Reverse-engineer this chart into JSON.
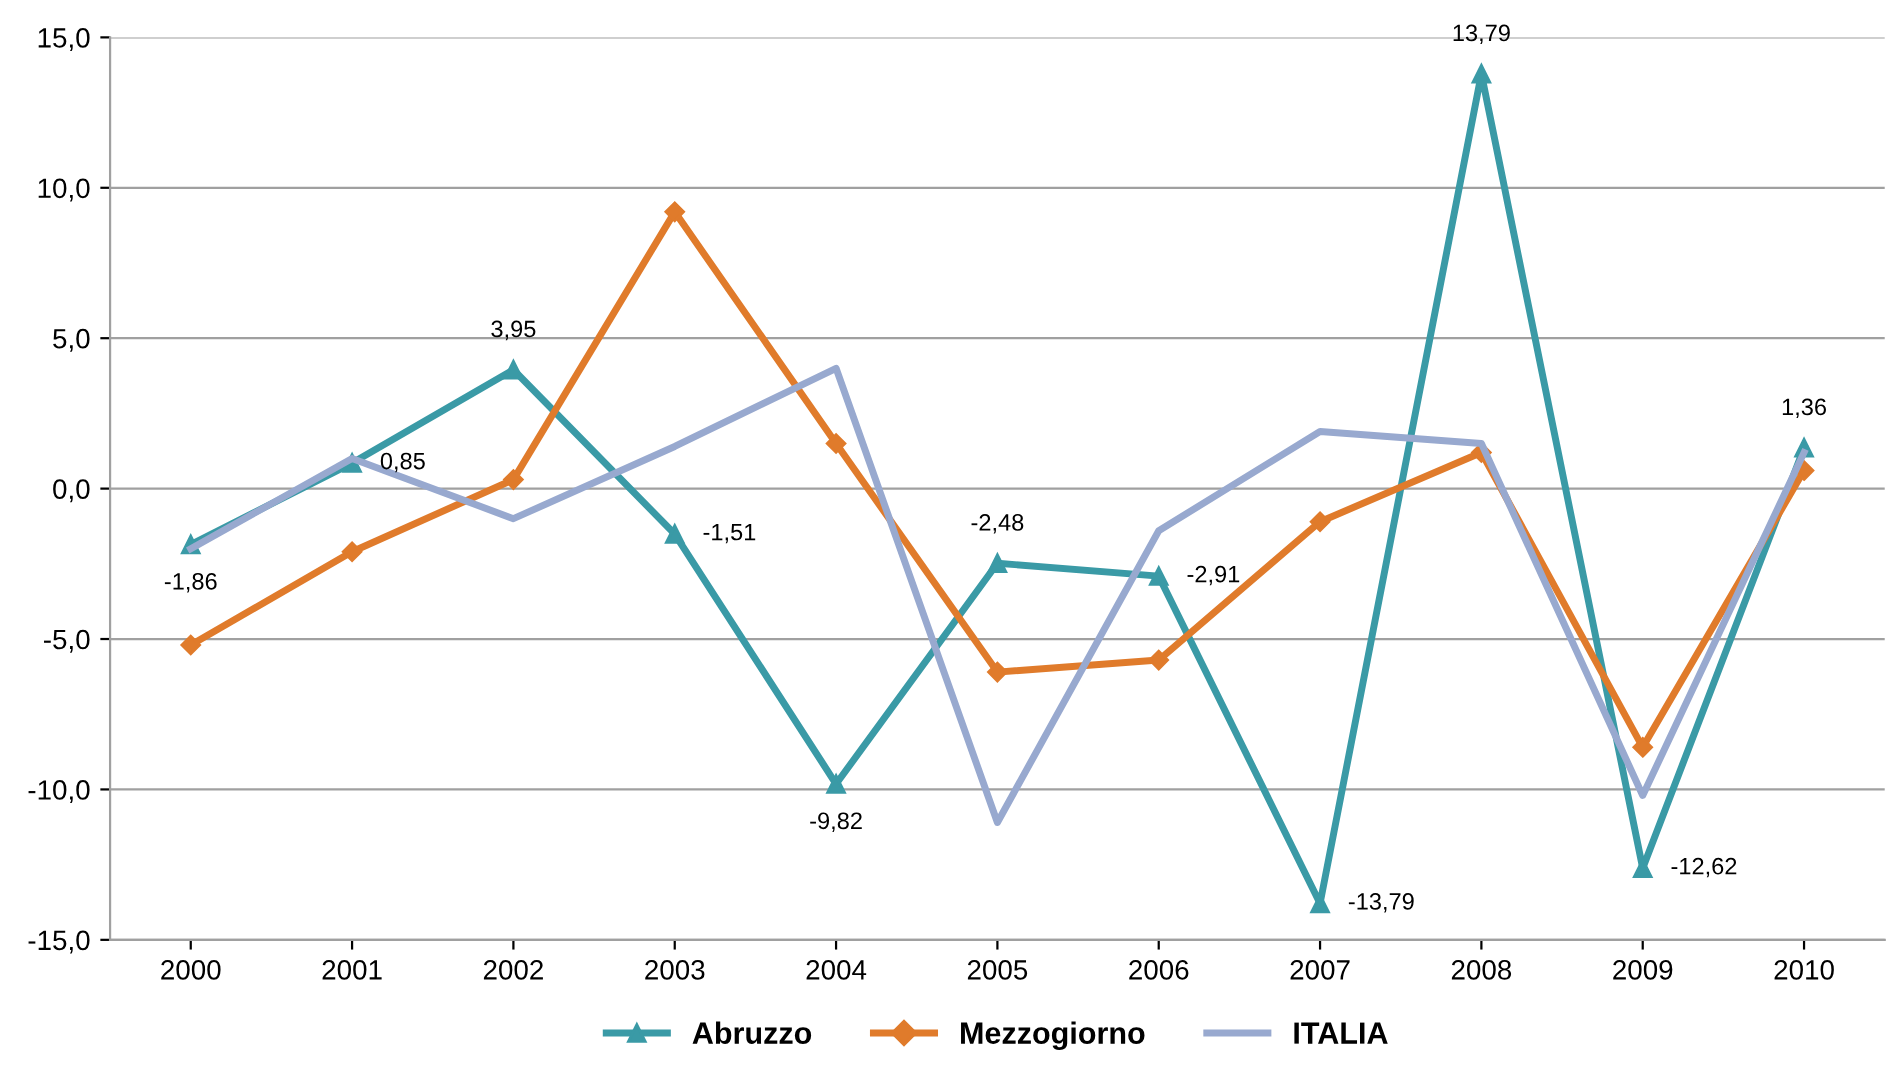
{
  "chart_data": {
    "type": "line",
    "categories": [
      "2000",
      "2001",
      "2002",
      "2003",
      "2004",
      "2005",
      "2006",
      "2007",
      "2008",
      "2009",
      "2010"
    ],
    "series": [
      {
        "name": "Abruzzo",
        "color": "#3a9aa6",
        "marker": "triangle",
        "values": [
          -1.86,
          0.85,
          3.95,
          -1.51,
          -9.82,
          -2.48,
          -2.91,
          -13.79,
          13.79,
          -12.62,
          1.36
        ],
        "value_labels": [
          "-1,86",
          "0,85",
          "3,95",
          "-1,51",
          "-9,82",
          "-2,48",
          "-2,91",
          "-13,79",
          "13,79",
          "-12,62",
          "1,36"
        ]
      },
      {
        "name": "Mezzogiorno",
        "color": "#e07b2b",
        "marker": "diamond",
        "values": [
          -5.2,
          -2.1,
          0.3,
          9.2,
          1.5,
          -6.1,
          -5.7,
          -1.1,
          1.2,
          -8.6,
          0.6
        ]
      },
      {
        "name": "ITALIA",
        "color": "#98a9cf",
        "marker": "none",
        "values": [
          -2.0,
          1.0,
          -1.0,
          1.4,
          4.0,
          -11.1,
          -1.4,
          1.9,
          1.5,
          -10.2,
          1.2
        ]
      }
    ],
    "ylim": [
      -15,
      15
    ],
    "yticks": [
      {
        "value": -15,
        "label": "-15,0"
      },
      {
        "value": -10,
        "label": "-10,0"
      },
      {
        "value": -5,
        "label": "-5,0"
      },
      {
        "value": 0,
        "label": "0,0"
      },
      {
        "value": 5,
        "label": "5,0"
      },
      {
        "value": 10,
        "label": "10,0"
      },
      {
        "value": 15,
        "label": "15,0"
      }
    ],
    "grid": "y",
    "legend": "bottom",
    "line_style": "solid"
  }
}
